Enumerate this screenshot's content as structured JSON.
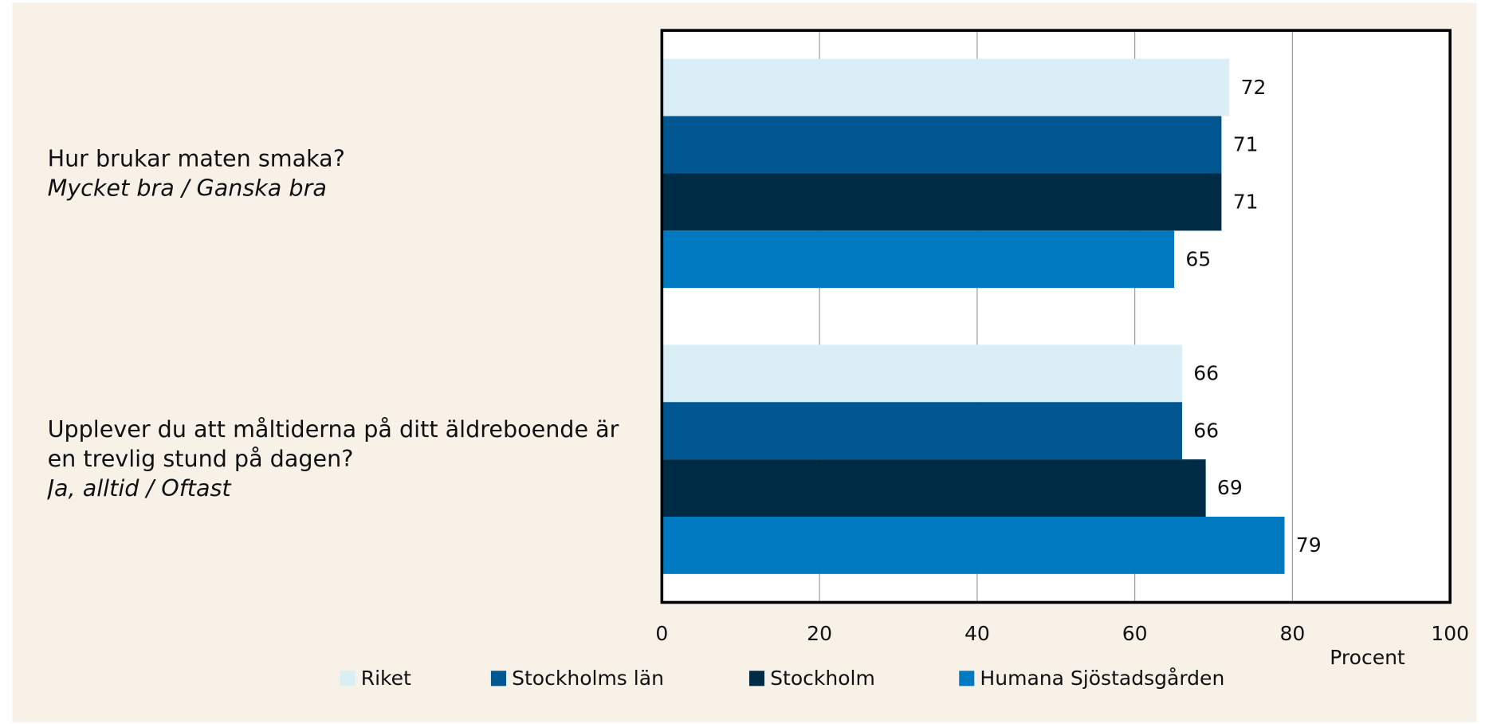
{
  "chart_data": {
    "type": "bar",
    "orientation": "horizontal",
    "categories": [
      "Hur brukar maten smaka?",
      "Upplever du att måltiderna på ditt äldreboende är en trevlig stund på dagen?"
    ],
    "category_subtitles": [
      "Mycket bra / Ganska bra",
      "Ja, alltid / Oftast"
    ],
    "series": [
      {
        "name": "Riket",
        "color": "#daeef6",
        "values": [
          72,
          66
        ]
      },
      {
        "name": "Stockholms län",
        "color": "#005691",
        "values": [
          71,
          66
        ]
      },
      {
        "name": "Stockholm",
        "color": "#002b45",
        "values": [
          71,
          69
        ]
      },
      {
        "name": "Humana Sjöstadsgården",
        "color": "#0079c1",
        "values": [
          65,
          79
        ]
      }
    ],
    "x_label": "Procent",
    "xlim": [
      0,
      100
    ],
    "xticks": [
      0,
      20,
      40,
      60,
      80,
      100
    ],
    "grid": true,
    "legend": "bottom"
  }
}
